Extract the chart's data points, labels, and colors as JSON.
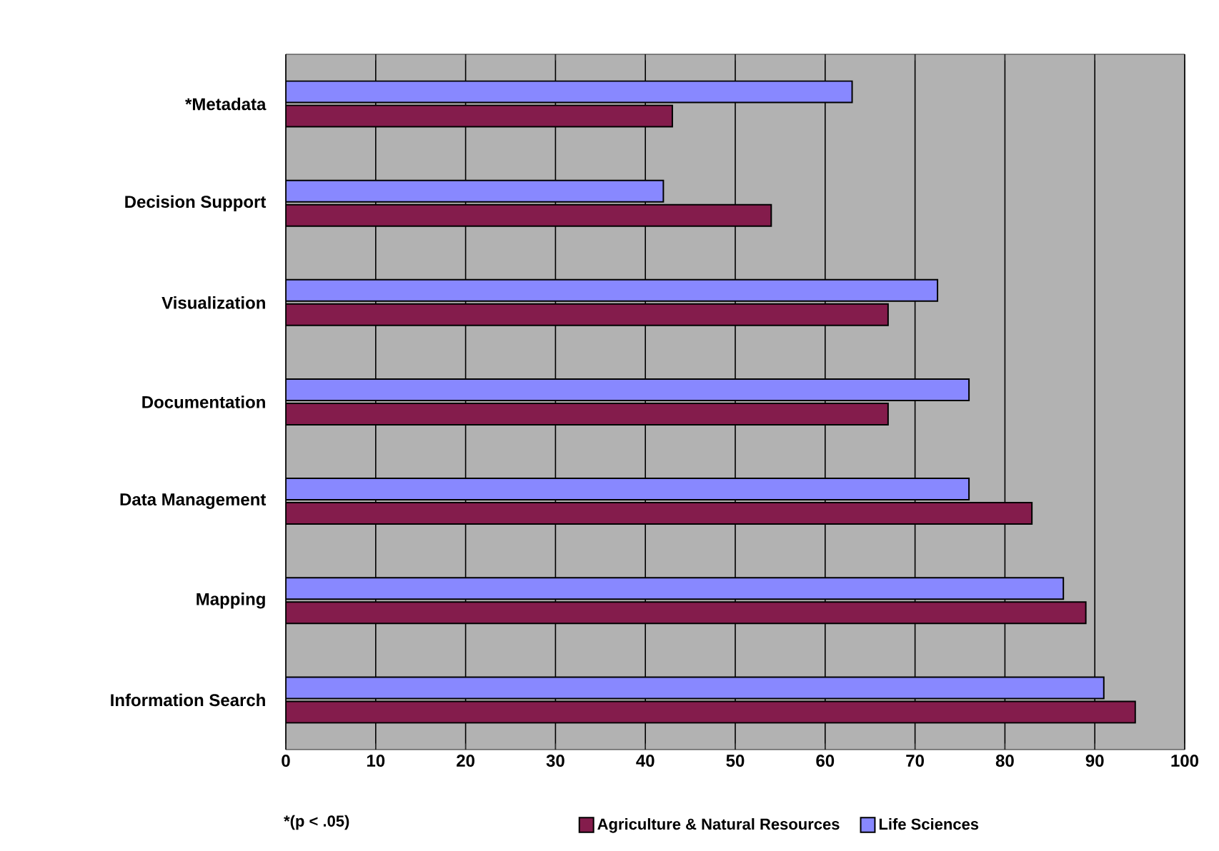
{
  "chart_data": {
    "type": "bar",
    "orientation": "horizontal",
    "categories": [
      "*Metadata",
      "Decision Support",
      "Visualization",
      "Documentation",
      "Data Management",
      "Mapping",
      "Information Search"
    ],
    "series": [
      {
        "name": "Agriculture & Natural Resources",
        "color": "#841c4c",
        "values": [
          43,
          54,
          67,
          67,
          83,
          89,
          94.5
        ]
      },
      {
        "name": "Life Sciences",
        "color": "#8888ff",
        "values": [
          63,
          42,
          72.5,
          76,
          76,
          86.5,
          91
        ]
      }
    ],
    "xlim": [
      0,
      100
    ],
    "xticks": [
      0,
      10,
      20,
      30,
      40,
      50,
      60,
      70,
      80,
      90,
      100
    ],
    "grid": "x",
    "legend": "bottom",
    "annotations": [
      "*(p < .05)"
    ]
  }
}
